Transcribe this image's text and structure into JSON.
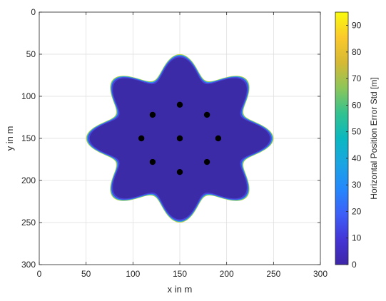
{
  "chart_data": {
    "type": "heatmap",
    "title": "",
    "xlabel": "x in m",
    "ylabel": "y in m",
    "xlim": [
      0,
      300
    ],
    "ylim": [
      0,
      300
    ],
    "y_reversed": true,
    "x_ticks": [
      "0",
      "50",
      "100",
      "150",
      "200",
      "250",
      "300"
    ],
    "y_ticks": [
      "0",
      "50",
      "100",
      "150",
      "200",
      "250",
      "300"
    ],
    "grid": true,
    "colormap": "parula",
    "colorbar": {
      "label": "Horizontal Position Error Std [m]",
      "range": [
        0,
        95
      ],
      "ticks": [
        "0",
        "10",
        "20",
        "30",
        "40",
        "50",
        "60",
        "70",
        "80",
        "90"
      ]
    },
    "coverage_region": {
      "center": [
        150,
        150
      ],
      "mean_radius": 87,
      "lobe_amplitude": 13,
      "lobes": 8,
      "interior_value": 5,
      "edge_value": 60
    },
    "anchors": [
      {
        "x": 150,
        "y": 110
      },
      {
        "x": 121,
        "y": 122
      },
      {
        "x": 179,
        "y": 122
      },
      {
        "x": 109,
        "y": 150
      },
      {
        "x": 150,
        "y": 150
      },
      {
        "x": 191,
        "y": 150
      },
      {
        "x": 121,
        "y": 178
      },
      {
        "x": 179,
        "y": 178
      },
      {
        "x": 150,
        "y": 190
      }
    ]
  }
}
